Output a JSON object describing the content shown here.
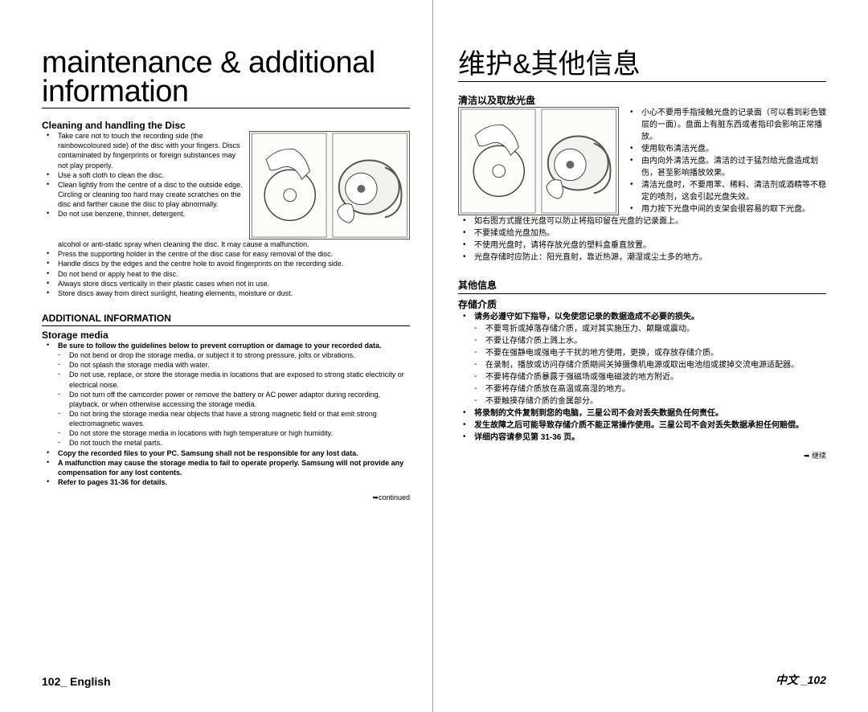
{
  "left": {
    "title": "maintenance & additional\ninformation",
    "cleaning_h": "Cleaning and handling the Disc",
    "cleaning_items": [
      "Take care not to touch the recording side (the rainbowcoloured side) of the disc with your fingers. Discs contaminated by fingerprints or foreign substances may not play properly.",
      "Use a soft cloth to clean the disc.",
      "Clean lightly from the centre of a disc to the outside edge. Circling or cleaning too hard may create scratches on the disc and farther cause the disc to play abnormally.",
      "Do not use benzene, thinner, detergent,",
      "alcohol or anti-static spray when cleaning the disc. It may cause a malfunction.",
      "Press the supporting holder in the centre of the disc case for easy removal of the disc.",
      "Handle discs by the edges and the centre hole to avoid fingerprints on the recording side.",
      "Do not bend or apply heat to the disc.",
      "Always store discs vertically in their plastic cases when not in use.",
      "Store discs away from direct sunlight, heating elements, moisture or dust."
    ],
    "addl_h": "ADDITIONAL INFORMATION",
    "storage_h": "Storage media",
    "storage_items": [
      {
        "bold": true,
        "text": "Be sure to follow the guidelines below to prevent corruption or damage to your recorded data."
      },
      {
        "dash": true,
        "sub": true,
        "text": "Do not bend or drop the storage media, or subject it to strong pressure, jolts or vibrations."
      },
      {
        "dash": true,
        "sub": true,
        "text": "Do not splash the storage media with water."
      },
      {
        "dash": true,
        "sub": true,
        "text": "Do not use, replace, or store the storage media in locations that are exposed to strong static electricity or electrical noise."
      },
      {
        "dash": true,
        "sub": true,
        "text": "Do not turn off the camcorder power or remove the battery or AC power adaptor during recording, playback, or when otherwise accessing the storage media."
      },
      {
        "dash": true,
        "sub": true,
        "text": "Do not bring the storage media near objects that have a strong magnetic field or that emit strong electromagnetic waves."
      },
      {
        "dash": true,
        "sub": true,
        "text": "Do not store the storage media in locations with high temperature or high humidity."
      },
      {
        "dash": true,
        "sub": true,
        "text": "Do not touch the metal parts."
      },
      {
        "bold": true,
        "text": "Copy the recorded files to your PC. Samsung shall not be responsible for any lost data."
      },
      {
        "bold": true,
        "text": "A malfunction may cause the storage media to fail to operate properly. Samsung will not provide any compensation for any lost contents."
      },
      {
        "bold": true,
        "text": "Refer to pages 31-36 for details."
      }
    ],
    "continued": "➥continued",
    "footer": "102_ English"
  },
  "right": {
    "title": "维护&其他信息",
    "cleaning_h": "清洁以及取放光盘",
    "cleaning_items_top": [
      "小心不要用手指接触光盘的记录面（可以看到彩色镀层的一面）。盘面上有脏东西或者指印会影响正常播放。",
      "使用软布清洁光盘。",
      "由内向外清洁光盘。清洁的过于猛烈给光盘造成划伤，甚至影响播放效果。",
      "清洁光盘时，不要用苯、稀料、清洁剂或酒精等不稳定的喷剂，这会引起光盘失效。",
      "用力按下光盘中间的支架会很容易的取下光盘。"
    ],
    "cleaning_items_full": [
      "如右图方式握住光盘可以防止将指印留在光盘的记录面上。",
      "不要揉或给光盘加热。",
      "不使用光盘时，请将存放光盘的塑料盒垂直放置。",
      "光盘存储时应防止：阳光直射，靠近热源，潮湿或尘土多的地方。"
    ],
    "addl_h": "其他信息",
    "storage_h": "存储介质",
    "storage_items": [
      {
        "bold": true,
        "text": "请务必遵守如下指导，以免使您记录的数据造成不必要的损失。"
      },
      {
        "dash": true,
        "sub": true,
        "text": "不要弯折或掉落存储介质，或对其实施压力、颠簸或震动。"
      },
      {
        "dash": true,
        "sub": true,
        "text": "不要让存储介质上溅上水。"
      },
      {
        "dash": true,
        "sub": true,
        "text": "不要在强静电或强电子干扰的地方使用，更换，或存放存储介质。"
      },
      {
        "dash": true,
        "sub": true,
        "text": "在录制，播放或访问存储介质期间关掉摄像机电源或取出电池组或拔掉交流电源适配器。"
      },
      {
        "dash": true,
        "sub": true,
        "text": "不要将存储介质暴露于强磁场或强电磁波的地方附近。"
      },
      {
        "dash": true,
        "sub": true,
        "text": "不要将存储介质放在高温或高湿的地方。"
      },
      {
        "dash": true,
        "sub": true,
        "text": "不要触摸存储介质的金属部分。"
      },
      {
        "bold": true,
        "text": "将录制的文件复制到您的电脑，三星公司不会对丢失数据负任何责任。"
      },
      {
        "bold": true,
        "text": "发生故障之后可能导致存储介质不能正常操作使用。三星公司不会对丢失数据承担任何赔偿。"
      },
      {
        "bold": true,
        "text": "详细内容请参见第 31-36 页。"
      }
    ],
    "continued": "➥ 继续",
    "footer": "中文 _102"
  }
}
